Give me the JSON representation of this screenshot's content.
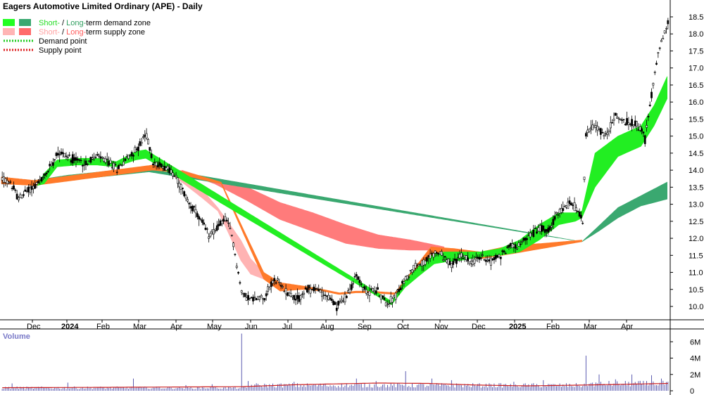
{
  "chart_data": {
    "type": "candlestick",
    "title": "Eagers Automotive Limited Ordinary (APE) - Daily",
    "legend": [
      {
        "parts": [
          {
            "text": "Short-",
            "color": "#22dd22"
          },
          {
            "text": " / ",
            "color": "#000000"
          },
          {
            "text": "Long-",
            "color": "#2e9e5e"
          },
          {
            "text": "term demand zone",
            "color": "#000000"
          }
        ],
        "swatches": [
          "#22ff22",
          "#3aa870"
        ],
        "kind": "box"
      },
      {
        "parts": [
          {
            "text": "Short-",
            "color": "#ff9f9f"
          },
          {
            "text": " / ",
            "color": "#000000"
          },
          {
            "text": "Long-",
            "color": "#ff5a5a"
          },
          {
            "text": "term supply zone",
            "color": "#000000"
          }
        ],
        "swatches": [
          "#ffb5b5",
          "#ff6a6a"
        ],
        "kind": "box"
      },
      {
        "parts": [
          {
            "text": "Demand point",
            "color": "#000000"
          }
        ],
        "swatches": [
          "#22cc22"
        ],
        "kind": "dotted"
      },
      {
        "parts": [
          {
            "text": "Supply point",
            "color": "#000000"
          }
        ],
        "swatches": [
          "#dd2222"
        ],
        "kind": "dotted"
      }
    ],
    "legend_position": "top-left",
    "price_axis": {
      "ticks": [
        "10.0",
        "10.5",
        "11.0",
        "11.5",
        "12.0",
        "12.5",
        "13.0",
        "13.5",
        "14.0",
        "14.5",
        "15.0",
        "15.5",
        "16.0",
        "16.5",
        "17.0",
        "17.5",
        "18.0",
        "18.5"
      ],
      "ylim": [
        9.6,
        19.0
      ]
    },
    "x_ticks": [
      "Dec",
      "2024",
      "Feb",
      "Mar",
      "Apr",
      "May",
      "Jun",
      "Jul",
      "Aug",
      "Sep",
      "Oct",
      "Nov",
      "Dec",
      "2025",
      "Feb",
      "Mar",
      "Apr"
    ],
    "volume_label": "Volume",
    "volume_axis": {
      "ticks": [
        "0",
        "2M",
        "4M",
        "6M"
      ],
      "ylim": [
        0,
        7.4
      ]
    },
    "price_anchors": [
      [
        0,
        13.75
      ],
      [
        6,
        13.55
      ],
      [
        10,
        13.15
      ],
      [
        14,
        13.35
      ],
      [
        20,
        13.55
      ],
      [
        26,
        13.8
      ],
      [
        34,
        14.55
      ],
      [
        42,
        14.35
      ],
      [
        50,
        14.2
      ],
      [
        58,
        14.4
      ],
      [
        66,
        14.2
      ],
      [
        70,
        14.05
      ],
      [
        76,
        14.35
      ],
      [
        82,
        14.6
      ],
      [
        88,
        15.05
      ],
      [
        92,
        14.2
      ],
      [
        100,
        14.1
      ],
      [
        106,
        13.8
      ],
      [
        112,
        13.2
      ],
      [
        120,
        12.6
      ],
      [
        126,
        12.1
      ],
      [
        132,
        12.35
      ],
      [
        136,
        12.6
      ],
      [
        140,
        12.1
      ],
      [
        146,
        10.4
      ],
      [
        152,
        10.2
      ],
      [
        160,
        10.3
      ],
      [
        166,
        10.8
      ],
      [
        172,
        10.5
      ],
      [
        180,
        10.2
      ],
      [
        186,
        10.5
      ],
      [
        192,
        10.5
      ],
      [
        198,
        10.3
      ],
      [
        204,
        10.0
      ],
      [
        210,
        10.3
      ],
      [
        216,
        10.9
      ],
      [
        222,
        10.4
      ],
      [
        228,
        10.5
      ],
      [
        234,
        10.1
      ],
      [
        240,
        10.3
      ],
      [
        246,
        10.8
      ],
      [
        252,
        11.2
      ],
      [
        258,
        11.3
      ],
      [
        264,
        11.6
      ],
      [
        268,
        11.5
      ],
      [
        274,
        11.2
      ],
      [
        280,
        11.5
      ],
      [
        286,
        11.3
      ],
      [
        292,
        11.45
      ],
      [
        298,
        11.35
      ],
      [
        304,
        11.5
      ],
      [
        310,
        11.8
      ],
      [
        316,
        11.8
      ],
      [
        322,
        12.1
      ],
      [
        328,
        12.3
      ],
      [
        334,
        12.3
      ],
      [
        340,
        12.8
      ],
      [
        346,
        13.0
      ],
      [
        350,
        12.9
      ],
      [
        354,
        12.5
      ],
      [
        356,
        15.1
      ],
      [
        362,
        15.3
      ],
      [
        368,
        15.0
      ],
      [
        374,
        15.6
      ],
      [
        380,
        15.4
      ],
      [
        386,
        15.4
      ],
      [
        390,
        15.2
      ],
      [
        392,
        14.9
      ],
      [
        396,
        16.2
      ],
      [
        400,
        17.5
      ],
      [
        406,
        18.3
      ]
    ],
    "short_demand_zone_anchors": [
      [
        22,
        13.55,
        13.55
      ],
      [
        26,
        13.6,
        13.9
      ],
      [
        34,
        14.1,
        14.3
      ],
      [
        46,
        14.15,
        14.35
      ],
      [
        58,
        14.15,
        14.35
      ],
      [
        70,
        14.1,
        14.25
      ],
      [
        82,
        14.3,
        14.55
      ],
      [
        88,
        14.35,
        14.6
      ],
      [
        238,
        10.05,
        10.15
      ],
      [
        246,
        10.55,
        10.75
      ],
      [
        256,
        10.95,
        11.25
      ],
      [
        264,
        11.25,
        11.55
      ],
      [
        270,
        11.3,
        11.6
      ],
      [
        280,
        11.35,
        11.6
      ],
      [
        292,
        11.45,
        11.6
      ],
      [
        304,
        11.5,
        11.7
      ],
      [
        316,
        11.6,
        11.95
      ],
      [
        328,
        11.95,
        12.4
      ],
      [
        340,
        12.4,
        12.75
      ],
      [
        350,
        12.5,
        12.75
      ],
      [
        354,
        12.6,
        12.8
      ],
      [
        362,
        13.5,
        14.5
      ],
      [
        376,
        14.4,
        15.0
      ],
      [
        390,
        14.7,
        15.3
      ],
      [
        398,
        15.3,
        15.9
      ],
      [
        406,
        16.1,
        16.75
      ]
    ],
    "long_demand_zone_anchors": [
      [
        20,
        13.55,
        13.7
      ],
      [
        40,
        13.7,
        13.85
      ],
      [
        60,
        13.8,
        13.95
      ],
      [
        80,
        13.9,
        14.05
      ],
      [
        90,
        13.95,
        14.1
      ],
      [
        354,
        11.9,
        11.9
      ],
      [
        364,
        12.2,
        12.35
      ],
      [
        376,
        12.6,
        12.9
      ],
      [
        390,
        12.95,
        13.25
      ],
      [
        406,
        13.15,
        13.65
      ]
    ],
    "short_supply_zone_anchors": [
      [
        88,
        14.5,
        14.6
      ],
      [
        100,
        14.0,
        14.2
      ],
      [
        110,
        13.65,
        13.85
      ],
      [
        122,
        13.2,
        13.45
      ],
      [
        132,
        12.8,
        12.9
      ],
      [
        138,
        12.2,
        12.5
      ],
      [
        146,
        11.35,
        11.95
      ],
      [
        152,
        10.95,
        11.4
      ],
      [
        160,
        10.8,
        11.0
      ],
      [
        166,
        10.6,
        10.8
      ],
      [
        174,
        10.4,
        10.55
      ]
    ],
    "long_supply_zone_anchors": [
      [
        110,
        13.95,
        14.0
      ],
      [
        130,
        13.6,
        13.7
      ],
      [
        150,
        13.1,
        13.5
      ],
      [
        170,
        12.55,
        13.05
      ],
      [
        190,
        12.2,
        12.75
      ],
      [
        210,
        11.85,
        12.4
      ],
      [
        230,
        11.7,
        12.1
      ],
      [
        250,
        11.65,
        11.95
      ],
      [
        270,
        11.65,
        11.75
      ]
    ],
    "orange_band_anchors": [
      [
        0,
        13.6,
        13.8
      ],
      [
        20,
        13.55,
        13.7
      ],
      [
        92,
        14.0,
        14.15
      ],
      [
        104,
        13.95,
        14.05
      ],
      [
        120,
        13.75,
        13.85
      ],
      [
        134,
        13.6,
        13.65
      ],
      [
        160,
        10.8,
        11.0
      ],
      [
        170,
        10.45,
        10.7
      ],
      [
        184,
        10.5,
        10.6
      ],
      [
        196,
        10.45,
        10.5
      ],
      [
        206,
        10.35,
        10.4
      ],
      [
        216,
        10.4,
        10.45
      ],
      [
        226,
        10.4,
        10.45
      ],
      [
        240,
        10.35,
        10.4
      ],
      [
        262,
        11.45,
        11.75
      ],
      [
        276,
        11.5,
        11.7
      ],
      [
        292,
        11.4,
        11.6
      ],
      [
        312,
        11.55,
        11.8
      ],
      [
        330,
        11.7,
        11.85
      ],
      [
        354,
        11.9,
        11.95
      ]
    ],
    "volume_baseline_m": 0.35,
    "volume_spikes_m": [
      [
        6,
        0.9
      ],
      [
        40,
        1.0
      ],
      [
        80,
        1.5
      ],
      [
        112,
        0.7
      ],
      [
        128,
        0.8
      ],
      [
        146,
        7.0
      ],
      [
        150,
        1.2
      ],
      [
        178,
        1.1
      ],
      [
        196,
        0.8
      ],
      [
        216,
        1.5
      ],
      [
        228,
        1.2
      ],
      [
        246,
        2.4
      ],
      [
        262,
        1.5
      ],
      [
        274,
        1.3
      ],
      [
        298,
        0.8
      ],
      [
        312,
        1.1
      ],
      [
        330,
        1.3
      ],
      [
        356,
        4.3
      ],
      [
        364,
        2.0
      ],
      [
        374,
        1.4
      ],
      [
        384,
        2.0
      ],
      [
        396,
        1.9
      ],
      [
        402,
        1.5
      ]
    ],
    "volume_ma_anchors_m": [
      [
        0,
        0.38
      ],
      [
        60,
        0.42
      ],
      [
        146,
        0.5
      ],
      [
        180,
        0.75
      ],
      [
        230,
        0.95
      ],
      [
        260,
        0.9
      ],
      [
        290,
        0.7
      ],
      [
        320,
        0.6
      ],
      [
        354,
        0.7
      ],
      [
        380,
        0.8
      ],
      [
        406,
        0.9
      ]
    ]
  }
}
